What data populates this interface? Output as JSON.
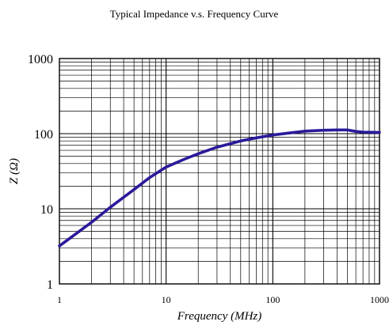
{
  "chart_data": {
    "type": "line",
    "title": "Typical Impedance v.s. Frequency Curve",
    "xlabel": "Frequency (MHz)",
    "ylabel": "Z (Ω)",
    "x_scale": "log",
    "y_scale": "log",
    "xlim": [
      1,
      1000
    ],
    "ylim": [
      1,
      1000
    ],
    "x_ticks": [
      "1",
      "10",
      "100",
      "1000"
    ],
    "y_ticks": [
      "1",
      "10",
      "100",
      "1000"
    ],
    "grid": true,
    "series": [
      {
        "x": [
          1,
          2,
          3,
          5,
          7,
          10,
          15,
          20,
          30,
          50,
          70,
          100,
          150,
          200,
          300,
          400,
          500,
          600,
          700,
          1000
        ],
        "y": [
          3.2,
          6.6,
          10.5,
          18,
          26,
          36,
          46,
          54,
          66,
          80,
          88,
          96,
          103,
          108,
          111,
          112,
          112,
          107,
          105,
          104
        ]
      }
    ],
    "colors": {
      "series": "#2a1a9a",
      "grid": "#000000",
      "frame": "#000000"
    }
  }
}
